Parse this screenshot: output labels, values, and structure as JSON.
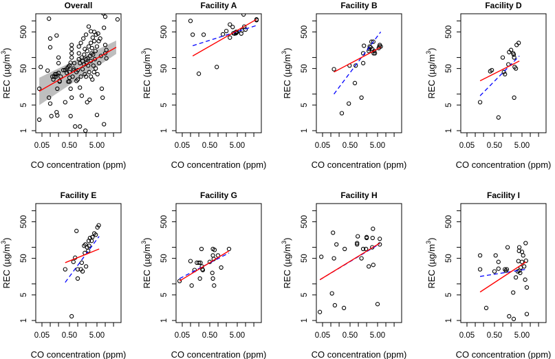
{
  "figure": {
    "xlabel": "CO concentration (ppm)",
    "ylabel_main": "REC (µg/m",
    "ylabel_sup": "3",
    "ylabel_close": ")",
    "x_tick_labels": [
      "0.05",
      "0.50",
      "5.00"
    ],
    "y_tick_labels": [
      "1",
      "5",
      "50",
      "500"
    ],
    "colors": {
      "fit_line": "#ff0000",
      "alt_fit_line": "#0000ff",
      "ci_band": "#bebebe",
      "points": "#000000"
    }
  },
  "chart_data": [
    {
      "type": "scatter",
      "title": "Overall",
      "xlabel": "CO concentration (ppm)",
      "ylabel": "REC (µg/m3)",
      "xscale": "log",
      "yscale": "log",
      "xlim": [
        0.035,
        35
      ],
      "ylim": [
        0.8,
        1600
      ],
      "x_ticks": [
        0.05,
        0.5,
        5.0
      ],
      "y_ticks": [
        1,
        5,
        50,
        500
      ],
      "fit_red": {
        "x": [
          0.04,
          25
        ],
        "y": [
          12,
          190
        ]
      },
      "ci_band": {
        "x": [
          0.04,
          25
        ],
        "lower": [
          5,
          125
        ],
        "upper": [
          28,
          290
        ]
      },
      "points": [
        [
          0.04,
          14
        ],
        [
          0.04,
          2
        ],
        [
          0.045,
          55
        ],
        [
          0.08,
          44
        ],
        [
          0.09,
          1150
        ],
        [
          0.1,
          330
        ],
        [
          0.1,
          190
        ],
        [
          0.09,
          8
        ],
        [
          0.1,
          5.5
        ],
        [
          0.11,
          2.5
        ],
        [
          0.12,
          30
        ],
        [
          0.13,
          25
        ],
        [
          0.14,
          30
        ],
        [
          0.15,
          35
        ],
        [
          0.16,
          30
        ],
        [
          0.17,
          35
        ],
        [
          0.17,
          3.2
        ],
        [
          0.18,
          2.6
        ],
        [
          0.17,
          400
        ],
        [
          0.2,
          38
        ],
        [
          0.2,
          100
        ],
        [
          0.2,
          70
        ],
        [
          0.18,
          14
        ],
        [
          0.22,
          23
        ],
        [
          0.22,
          22
        ],
        [
          0.24,
          30
        ],
        [
          0.3,
          45
        ],
        [
          0.35,
          45
        ],
        [
          0.35,
          6
        ],
        [
          0.4,
          50
        ],
        [
          0.4,
          38
        ],
        [
          0.45,
          55
        ],
        [
          0.45,
          22
        ],
        [
          0.5,
          22
        ],
        [
          0.5,
          28
        ],
        [
          0.5,
          40
        ],
        [
          0.5,
          60
        ],
        [
          0.55,
          72
        ],
        [
          0.55,
          14
        ],
        [
          0.55,
          2.5
        ],
        [
          0.6,
          100
        ],
        [
          0.6,
          130
        ],
        [
          0.6,
          8
        ],
        [
          0.6,
          220
        ],
        [
          0.6,
          170
        ],
        [
          0.65,
          30
        ],
        [
          0.7,
          50
        ],
        [
          0.7,
          45
        ],
        [
          0.75,
          70
        ],
        [
          0.8,
          1.3
        ],
        [
          0.9,
          40
        ],
        [
          0.9,
          23
        ],
        [
          1.0,
          25
        ],
        [
          1.0,
          45
        ],
        [
          1.1,
          200
        ],
        [
          1.1,
          90
        ],
        [
          1.1,
          130
        ],
        [
          1.2,
          70
        ],
        [
          1.2,
          15
        ],
        [
          1.2,
          1.3
        ],
        [
          1.3,
          30
        ],
        [
          1.3,
          250
        ],
        [
          1.4,
          100
        ],
        [
          1.4,
          9
        ],
        [
          1.5,
          80
        ],
        [
          1.5,
          48
        ],
        [
          1.6,
          330
        ],
        [
          1.7,
          120
        ],
        [
          1.7,
          65
        ],
        [
          1.8,
          170
        ],
        [
          1.8,
          35
        ],
        [
          1.9,
          1.0
        ],
        [
          2.0,
          420
        ],
        [
          2.0,
          30
        ],
        [
          2.0,
          90
        ],
        [
          2.1,
          70
        ],
        [
          2.2,
          6
        ],
        [
          2.2,
          150
        ],
        [
          2.3,
          95
        ],
        [
          2.4,
          60
        ],
        [
          2.5,
          700
        ],
        [
          2.5,
          200
        ],
        [
          2.6,
          40
        ],
        [
          2.7,
          7
        ],
        [
          2.8,
          110
        ],
        [
          3.0,
          520
        ],
        [
          3.0,
          250
        ],
        [
          3.0,
          80
        ],
        [
          3.0,
          30
        ],
        [
          3.2,
          130
        ],
        [
          3.3,
          180
        ],
        [
          3.4,
          25
        ],
        [
          3.5,
          350
        ],
        [
          3.6,
          120
        ],
        [
          3.7,
          60
        ],
        [
          3.9,
          40
        ],
        [
          4.0,
          500
        ],
        [
          4.0,
          280
        ],
        [
          4.2,
          90
        ],
        [
          4.4,
          150
        ],
        [
          4.5,
          50
        ],
        [
          4.6,
          420
        ],
        [
          5.0,
          200
        ],
        [
          5.0,
          2.7
        ],
        [
          5.2,
          35
        ],
        [
          5.5,
          450
        ],
        [
          5.8,
          280
        ],
        [
          6.0,
          70
        ],
        [
          6.5,
          330
        ],
        [
          7.0,
          110
        ],
        [
          7.5,
          14
        ],
        [
          8.0,
          8
        ],
        [
          8.5,
          1600
        ],
        [
          9.0,
          1.5
        ],
        [
          9.0,
          650
        ],
        [
          10,
          220
        ],
        [
          10,
          130
        ],
        [
          10,
          1300
        ],
        [
          11,
          95
        ],
        [
          11,
          160
        ],
        [
          28,
          1100
        ]
      ]
    },
    {
      "type": "scatter",
      "title": "Facility A",
      "xscale": "log",
      "yscale": "log",
      "fit_red": {
        "x": [
          0.12,
          25
        ],
        "y": [
          110,
          1100
        ]
      },
      "fit_blue": {
        "x": [
          0.12,
          25
        ],
        "y": [
          210,
          750
        ]
      },
      "points": [
        [
          0.1,
          1000
        ],
        [
          0.12,
          420
        ],
        [
          0.2,
          36
        ],
        [
          0.3,
          420
        ],
        [
          0.9,
          55
        ],
        [
          1.5,
          430
        ],
        [
          2.0,
          530
        ],
        [
          2.7,
          350
        ],
        [
          2.7,
          800
        ],
        [
          3.4,
          680
        ],
        [
          3.6,
          460
        ],
        [
          4.0,
          450
        ],
        [
          4.5,
          500
        ],
        [
          4.5,
          460
        ],
        [
          4.7,
          480
        ],
        [
          5.0,
          500
        ],
        [
          7.0,
          450
        ],
        [
          7.5,
          550
        ],
        [
          8.5,
          1500
        ],
        [
          9.0,
          700
        ],
        [
          10,
          580
        ],
        [
          25,
          1100
        ],
        [
          25,
          1050
        ]
      ]
    },
    {
      "type": "scatter",
      "title": "Facility B",
      "xscale": "log",
      "yscale": "log",
      "fit_red": {
        "x": [
          0.13,
          6.5
        ],
        "y": [
          40,
          190
        ]
      },
      "fit_blue": {
        "x": [
          0.13,
          6.5
        ],
        "y": [
          10,
          500
        ]
      },
      "points": [
        [
          0.13,
          48
        ],
        [
          0.25,
          3
        ],
        [
          0.45,
          5.5
        ],
        [
          0.48,
          60
        ],
        [
          0.75,
          20
        ],
        [
          0.8,
          60
        ],
        [
          1.3,
          8
        ],
        [
          1.5,
          130
        ],
        [
          1.5,
          70
        ],
        [
          1.6,
          210
        ],
        [
          2.4,
          150
        ],
        [
          2.5,
          170
        ],
        [
          2.6,
          200
        ],
        [
          2.8,
          190
        ],
        [
          3.0,
          270
        ],
        [
          3.2,
          170
        ],
        [
          3.5,
          270
        ],
        [
          3.6,
          130
        ],
        [
          3.8,
          150
        ],
        [
          4.0,
          130
        ],
        [
          5.5,
          180
        ],
        [
          5.8,
          200
        ],
        [
          6.0,
          220
        ],
        [
          6.5,
          200
        ]
      ]
    },
    {
      "type": "scatter",
      "title": "Facility D",
      "xscale": "log",
      "yscale": "log",
      "fit_red": {
        "x": [
          0.15,
          4.0
        ],
        "y": [
          23,
          80
        ]
      },
      "fit_blue": {
        "x": [
          0.15,
          4.0
        ],
        "y": [
          9,
          110
        ]
      },
      "points": [
        [
          0.15,
          6
        ],
        [
          0.35,
          42
        ],
        [
          0.4,
          45
        ],
        [
          0.7,
          2.3
        ],
        [
          1.0,
          100
        ],
        [
          1.1,
          40
        ],
        [
          1.2,
          35
        ],
        [
          1.6,
          65
        ],
        [
          1.7,
          140
        ],
        [
          2.0,
          160
        ],
        [
          2.4,
          130
        ],
        [
          2.5,
          120
        ],
        [
          2.6,
          100
        ],
        [
          2.6,
          8
        ],
        [
          2.7,
          55
        ],
        [
          3.0,
          50
        ],
        [
          3.2,
          220
        ],
        [
          3.8,
          250
        ]
      ]
    },
    {
      "type": "scatter",
      "title": "Facility E",
      "xscale": "log",
      "yscale": "log",
      "fit_red": {
        "x": [
          0.35,
          6.0
        ],
        "y": [
          38,
          90
        ]
      },
      "fit_blue": {
        "x": [
          0.35,
          6.0
        ],
        "y": [
          11,
          200
        ]
      },
      "points": [
        [
          0.35,
          25
        ],
        [
          0.6,
          1.3
        ],
        [
          0.7,
          40
        ],
        [
          0.8,
          52
        ],
        [
          0.9,
          280
        ],
        [
          1.0,
          25
        ],
        [
          1.0,
          14
        ],
        [
          1.3,
          25
        ],
        [
          1.4,
          38
        ],
        [
          1.5,
          22
        ],
        [
          1.7,
          110
        ],
        [
          1.8,
          70
        ],
        [
          1.9,
          120
        ],
        [
          2.0,
          30
        ],
        [
          2.2,
          100
        ],
        [
          2.4,
          80
        ],
        [
          2.5,
          150
        ],
        [
          2.6,
          110
        ],
        [
          2.8,
          180
        ],
        [
          3.2,
          150
        ],
        [
          3.4,
          190
        ],
        [
          4.0,
          240
        ],
        [
          4.5,
          220
        ],
        [
          5.2,
          350
        ],
        [
          5.8,
          400
        ]
      ]
    },
    {
      "type": "scatter",
      "title": "Facility G",
      "xscale": "log",
      "yscale": "log",
      "fit_red": {
        "x": [
          0.04,
          2.5
        ],
        "y": [
          12,
          80
        ]
      },
      "fit_blue": {
        "x": [
          0.04,
          2.5
        ],
        "y": [
          14,
          70
        ]
      },
      "points": [
        [
          0.04,
          12
        ],
        [
          0.1,
          42
        ],
        [
          0.11,
          9
        ],
        [
          0.14,
          24
        ],
        [
          0.17,
          38
        ],
        [
          0.2,
          38
        ],
        [
          0.22,
          14
        ],
        [
          0.23,
          38
        ],
        [
          0.25,
          90
        ],
        [
          0.26,
          30
        ],
        [
          0.27,
          25
        ],
        [
          0.28,
          24
        ],
        [
          0.5,
          40
        ],
        [
          0.62,
          20
        ],
        [
          0.65,
          14
        ],
        [
          0.65,
          60
        ],
        [
          0.65,
          90
        ],
        [
          0.7,
          48
        ],
        [
          0.72,
          9
        ],
        [
          0.75,
          85
        ],
        [
          1.0,
          60
        ],
        [
          1.3,
          28
        ],
        [
          2.5,
          90
        ]
      ]
    },
    {
      "type": "scatter",
      "title": "Facility H",
      "xscale": "log",
      "yscale": "log",
      "fit_red": {
        "x": [
          0.04,
          6.0
        ],
        "y": [
          13,
          130
        ]
      },
      "fit_blue": {
        "x": [
          0.04,
          6.0
        ],
        "y": [
          13,
          125
        ]
      },
      "points": [
        [
          0.04,
          1.7
        ],
        [
          0.045,
          55
        ],
        [
          0.11,
          5.5
        ],
        [
          0.12,
          250
        ],
        [
          0.13,
          50
        ],
        [
          0.14,
          2.6
        ],
        [
          0.16,
          120
        ],
        [
          0.3,
          2.2
        ],
        [
          0.32,
          90
        ],
        [
          0.9,
          130
        ],
        [
          0.9,
          120
        ],
        [
          0.95,
          200
        ],
        [
          1.3,
          50
        ],
        [
          1.5,
          90
        ],
        [
          1.9,
          90
        ],
        [
          2.0,
          180
        ],
        [
          2.0,
          190
        ],
        [
          2.4,
          30
        ],
        [
          3.2,
          100
        ],
        [
          3.3,
          180
        ],
        [
          3.4,
          320
        ],
        [
          3.5,
          33
        ],
        [
          5.0,
          2.8
        ],
        [
          6.0,
          170
        ],
        [
          6.0,
          120
        ]
      ]
    },
    {
      "type": "scatter",
      "title": "Facility I",
      "xscale": "log",
      "yscale": "log",
      "fit_red": {
        "x": [
          0.15,
          7.0
        ],
        "y": [
          6,
          40
        ]
      },
      "fit_blue": {
        "x": [
          0.15,
          7.0
        ],
        "y": [
          16,
          25
        ]
      },
      "points": [
        [
          0.15,
          60
        ],
        [
          0.15,
          25
        ],
        [
          0.25,
          2.2
        ],
        [
          0.5,
          22
        ],
        [
          0.55,
          60
        ],
        [
          0.7,
          40
        ],
        [
          0.7,
          26
        ],
        [
          1.2,
          25
        ],
        [
          1.3,
          23
        ],
        [
          1.4,
          25
        ],
        [
          1.5,
          100
        ],
        [
          1.7,
          1.3
        ],
        [
          2.5,
          1.1
        ],
        [
          2.4,
          5.8
        ],
        [
          3.0,
          15
        ],
        [
          3.5,
          22
        ],
        [
          3.7,
          42
        ],
        [
          3.9,
          80
        ],
        [
          4.0,
          100
        ],
        [
          4.0,
          23
        ],
        [
          4.3,
          20
        ],
        [
          4.5,
          28
        ],
        [
          5.0,
          40
        ],
        [
          5.0,
          75
        ],
        [
          5.5,
          60
        ],
        [
          6.0,
          30
        ],
        [
          6.5,
          13
        ],
        [
          6.8,
          130
        ],
        [
          7.0,
          43
        ],
        [
          7.5,
          8
        ],
        [
          7.5,
          1.5
        ]
      ]
    }
  ]
}
